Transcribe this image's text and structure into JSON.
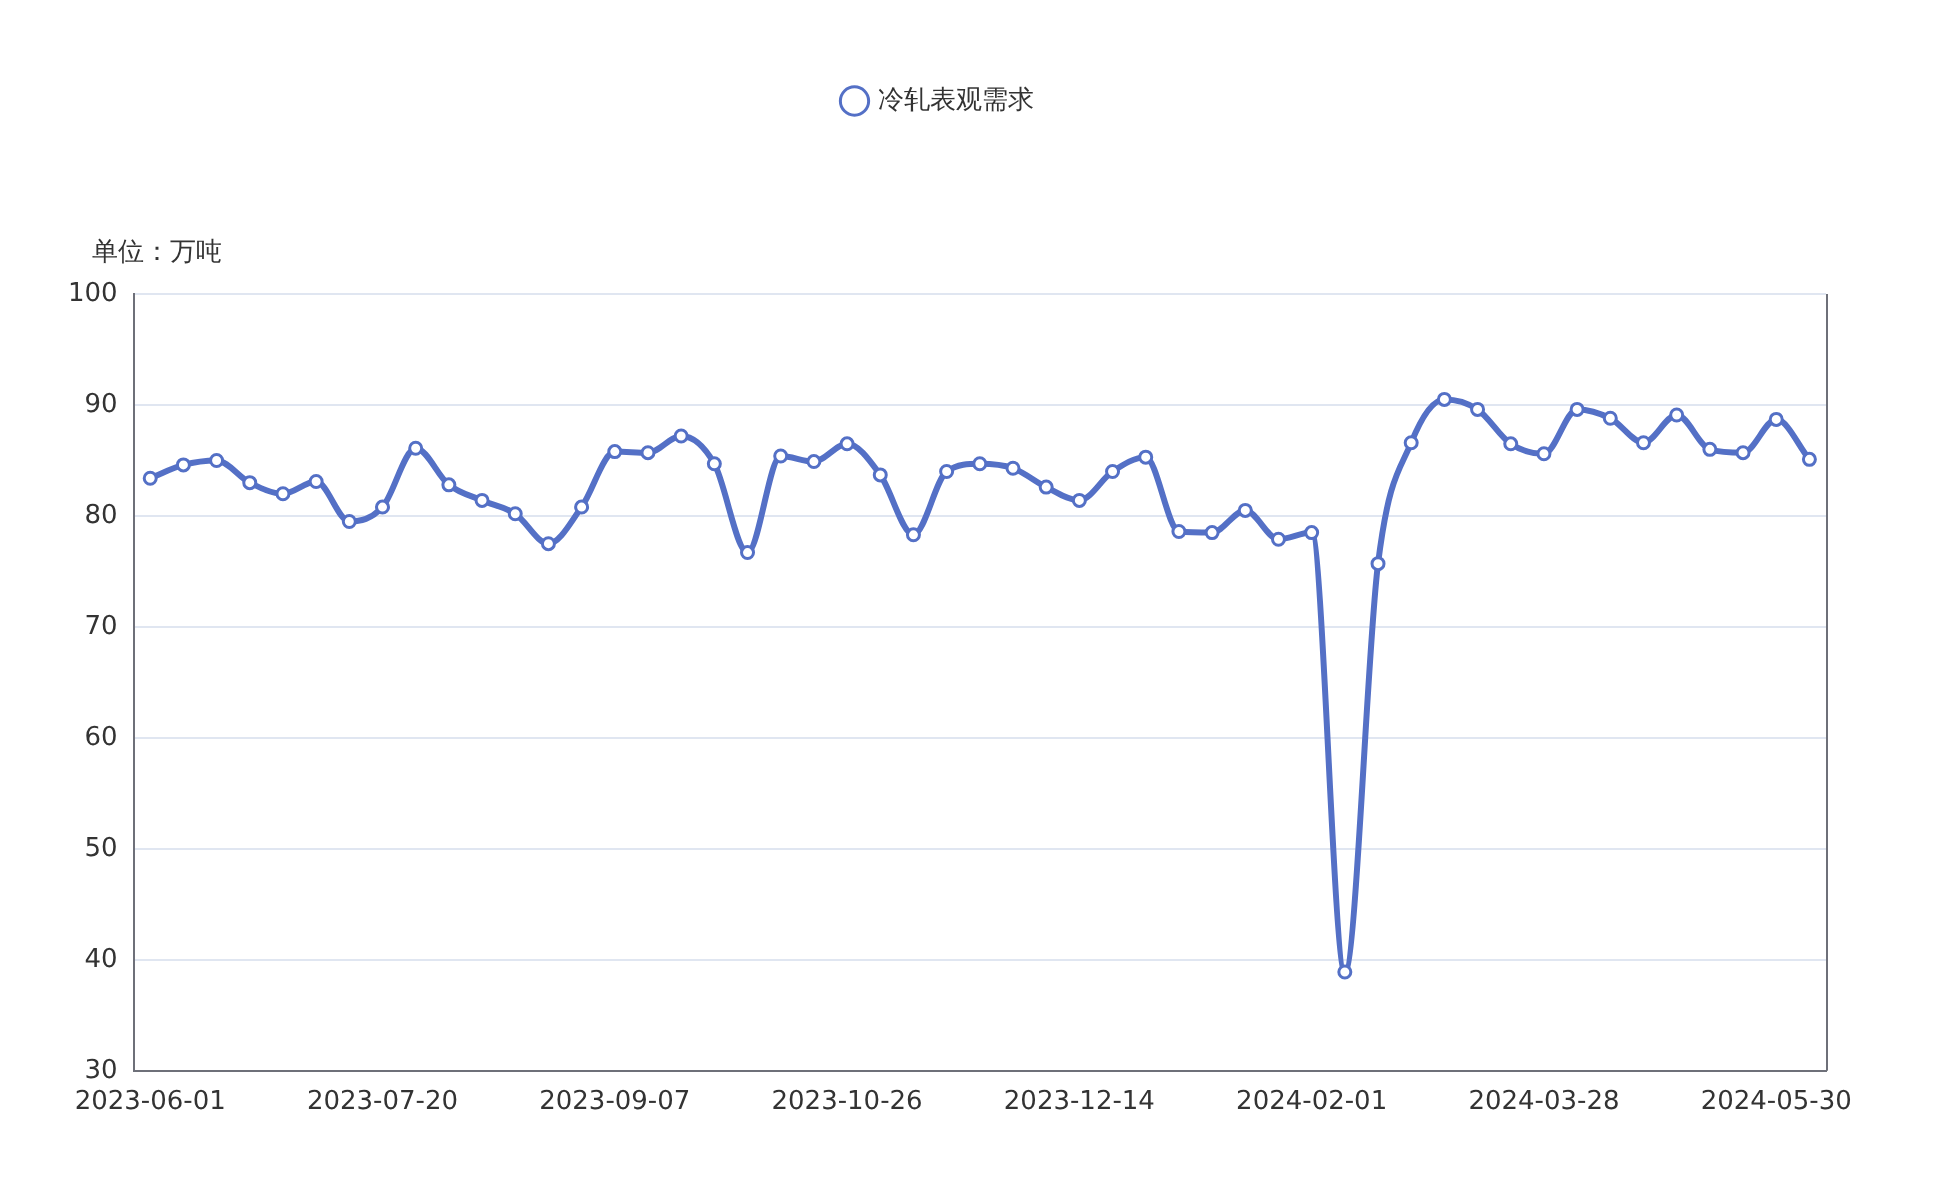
{
  "chart_data": {
    "type": "line",
    "ylabel": "单位：万吨",
    "categories": [
      "2023-06-01",
      null,
      null,
      null,
      null,
      null,
      null,
      "2023-07-20",
      null,
      null,
      null,
      null,
      null,
      null,
      "2023-09-07",
      null,
      null,
      null,
      null,
      null,
      null,
      "2023-10-26",
      null,
      null,
      null,
      null,
      null,
      null,
      "2023-12-14",
      null,
      null,
      null,
      null,
      null,
      null,
      "2024-02-01",
      null,
      null,
      null,
      null,
      null,
      null,
      "2024-03-28",
      null,
      null,
      null,
      null,
      null,
      null,
      "2024-05-30",
      null
    ],
    "series": [
      {
        "name": "冷轧表观需求",
        "color": "#5470c6",
        "values": [
          83.4,
          84.6,
          85.0,
          83.0,
          82.0,
          83.1,
          79.5,
          80.8,
          86.1,
          82.8,
          81.4,
          80.2,
          77.5,
          80.8,
          85.8,
          85.7,
          87.2,
          84.7,
          76.7,
          85.4,
          84.9,
          86.5,
          83.7,
          78.3,
          84.0,
          84.7,
          84.3,
          82.6,
          81.4,
          84.0,
          85.3,
          78.6,
          78.5,
          80.5,
          77.9,
          78.5,
          38.9,
          75.7,
          86.6,
          90.5,
          89.6,
          86.5,
          85.6,
          89.6,
          88.8,
          86.6,
          89.1,
          86.0,
          85.7,
          88.7,
          85.1
        ]
      }
    ],
    "ylim": [
      30,
      100
    ],
    "yticks": [
      30,
      40,
      50,
      60,
      70,
      80,
      90,
      100
    ],
    "grid": "y",
    "legend": "top",
    "marker": "circle",
    "line_style": "solid"
  }
}
